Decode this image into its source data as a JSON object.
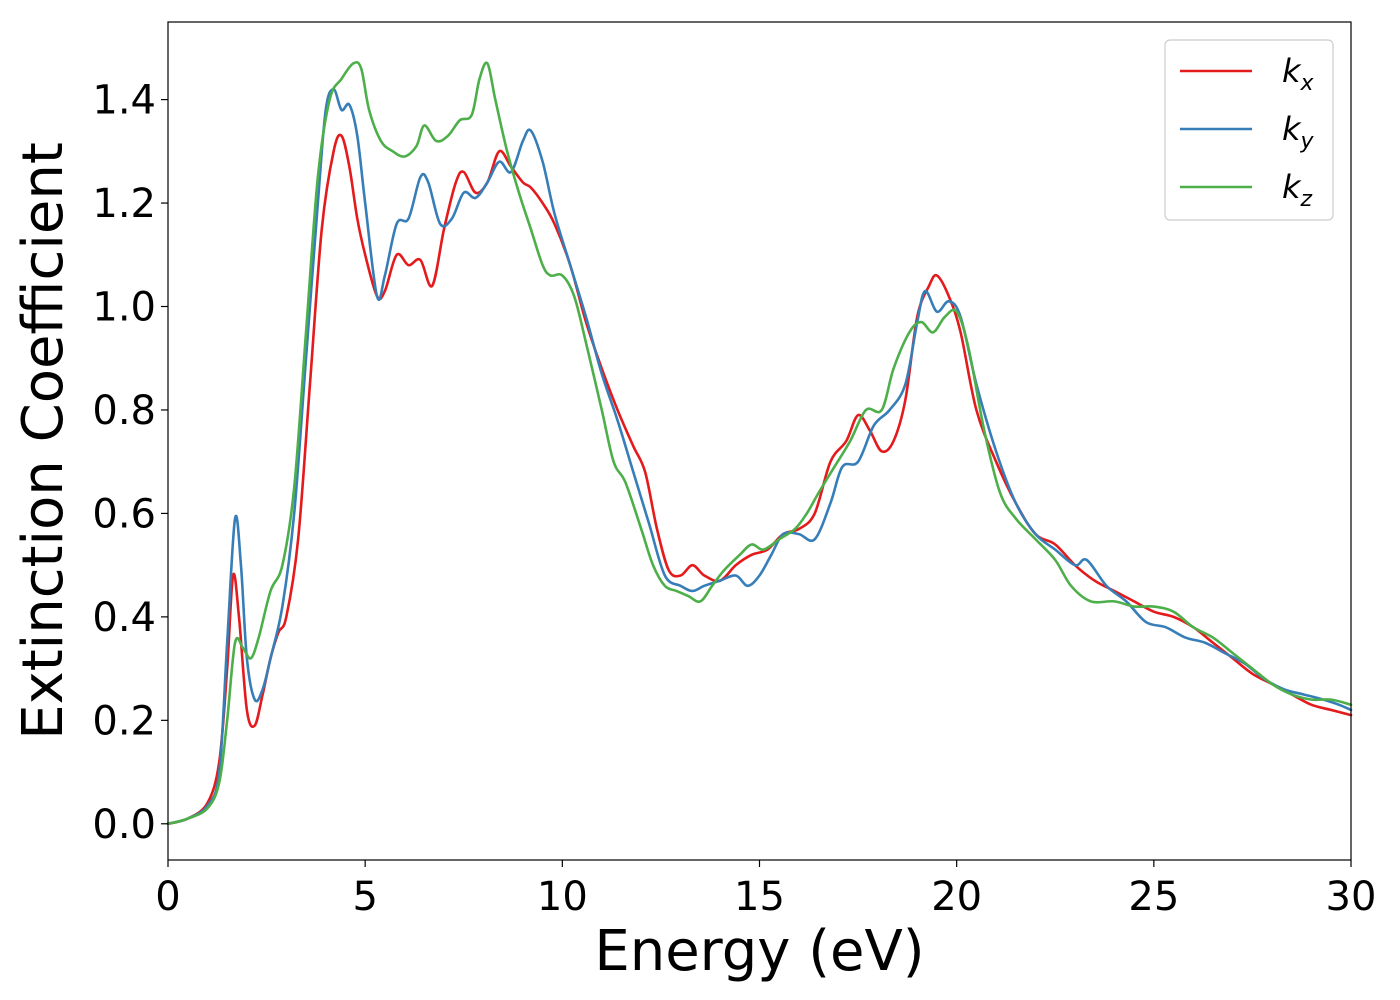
{
  "chart_data": {
    "type": "line",
    "title": "",
    "xlabel": "Energy (eV)",
    "ylabel": "Extinction Coefficient",
    "xlim": [
      0,
      30
    ],
    "ylim": [
      -0.07,
      1.55
    ],
    "xticks": [
      0,
      5,
      10,
      15,
      20,
      25,
      30
    ],
    "xtick_labels": [
      "0",
      "5",
      "10",
      "15",
      "20",
      "25",
      "30"
    ],
    "yticks": [
      0.0,
      0.2,
      0.4,
      0.6,
      0.8,
      1.0,
      1.2,
      1.4
    ],
    "ytick_labels": [
      "0.0",
      "0.2",
      "0.4",
      "0.6",
      "0.8",
      "1.0",
      "1.2",
      "1.4"
    ],
    "grid": false,
    "legend_position": "top-right",
    "series": [
      {
        "name": "k",
        "subscript": "x",
        "color": "#e41a1c",
        "points": [
          [
            0,
            0.0
          ],
          [
            0.5,
            0.01
          ],
          [
            1.0,
            0.04
          ],
          [
            1.3,
            0.12
          ],
          [
            1.5,
            0.3
          ],
          [
            1.65,
            0.48
          ],
          [
            1.8,
            0.4
          ],
          [
            2.0,
            0.22
          ],
          [
            2.2,
            0.19
          ],
          [
            2.4,
            0.25
          ],
          [
            2.6,
            0.32
          ],
          [
            2.8,
            0.37
          ],
          [
            3.0,
            0.4
          ],
          [
            3.3,
            0.55
          ],
          [
            3.6,
            0.85
          ],
          [
            3.9,
            1.15
          ],
          [
            4.2,
            1.3
          ],
          [
            4.4,
            1.33
          ],
          [
            4.6,
            1.27
          ],
          [
            4.8,
            1.17
          ],
          [
            5.0,
            1.1
          ],
          [
            5.3,
            1.02
          ],
          [
            5.5,
            1.03
          ],
          [
            5.8,
            1.1
          ],
          [
            6.1,
            1.08
          ],
          [
            6.4,
            1.09
          ],
          [
            6.7,
            1.04
          ],
          [
            7.0,
            1.15
          ],
          [
            7.3,
            1.24
          ],
          [
            7.5,
            1.26
          ],
          [
            7.8,
            1.22
          ],
          [
            8.1,
            1.24
          ],
          [
            8.4,
            1.3
          ],
          [
            8.7,
            1.27
          ],
          [
            9.0,
            1.24
          ],
          [
            9.2,
            1.23
          ],
          [
            9.5,
            1.2
          ],
          [
            9.8,
            1.16
          ],
          [
            10.2,
            1.08
          ],
          [
            10.6,
            0.97
          ],
          [
            11.0,
            0.88
          ],
          [
            11.4,
            0.8
          ],
          [
            11.8,
            0.73
          ],
          [
            12.1,
            0.68
          ],
          [
            12.4,
            0.57
          ],
          [
            12.7,
            0.49
          ],
          [
            13.0,
            0.48
          ],
          [
            13.3,
            0.5
          ],
          [
            13.6,
            0.48
          ],
          [
            14.0,
            0.47
          ],
          [
            14.4,
            0.5
          ],
          [
            14.8,
            0.52
          ],
          [
            15.2,
            0.53
          ],
          [
            15.6,
            0.56
          ],
          [
            16.0,
            0.57
          ],
          [
            16.4,
            0.6
          ],
          [
            16.8,
            0.7
          ],
          [
            17.2,
            0.74
          ],
          [
            17.5,
            0.79
          ],
          [
            17.8,
            0.76
          ],
          [
            18.1,
            0.72
          ],
          [
            18.4,
            0.74
          ],
          [
            18.7,
            0.82
          ],
          [
            19.0,
            0.98
          ],
          [
            19.3,
            1.04
          ],
          [
            19.5,
            1.06
          ],
          [
            19.8,
            1.02
          ],
          [
            20.1,
            0.95
          ],
          [
            20.5,
            0.8
          ],
          [
            21.0,
            0.7
          ],
          [
            21.5,
            0.62
          ],
          [
            22.0,
            0.56
          ],
          [
            22.5,
            0.54
          ],
          [
            23.0,
            0.5
          ],
          [
            23.5,
            0.47
          ],
          [
            24.0,
            0.45
          ],
          [
            24.5,
            0.43
          ],
          [
            25.0,
            0.41
          ],
          [
            25.5,
            0.4
          ],
          [
            26.0,
            0.38
          ],
          [
            26.5,
            0.35
          ],
          [
            27.0,
            0.32
          ],
          [
            27.5,
            0.29
          ],
          [
            28.0,
            0.27
          ],
          [
            28.5,
            0.25
          ],
          [
            29.0,
            0.23
          ],
          [
            29.5,
            0.22
          ],
          [
            30.0,
            0.21
          ]
        ]
      },
      {
        "name": "k",
        "subscript": "y",
        "color": "#377eb8",
        "points": [
          [
            0,
            0.0
          ],
          [
            0.5,
            0.01
          ],
          [
            1.0,
            0.035
          ],
          [
            1.3,
            0.1
          ],
          [
            1.5,
            0.35
          ],
          [
            1.7,
            0.59
          ],
          [
            1.85,
            0.5
          ],
          [
            2.0,
            0.32
          ],
          [
            2.2,
            0.24
          ],
          [
            2.4,
            0.26
          ],
          [
            2.6,
            0.32
          ],
          [
            2.9,
            0.42
          ],
          [
            3.2,
            0.6
          ],
          [
            3.5,
            0.9
          ],
          [
            3.8,
            1.2
          ],
          [
            4.0,
            1.38
          ],
          [
            4.2,
            1.42
          ],
          [
            4.4,
            1.38
          ],
          [
            4.6,
            1.39
          ],
          [
            4.8,
            1.33
          ],
          [
            5.0,
            1.2
          ],
          [
            5.3,
            1.02
          ],
          [
            5.5,
            1.06
          ],
          [
            5.8,
            1.16
          ],
          [
            6.1,
            1.17
          ],
          [
            6.4,
            1.25
          ],
          [
            6.6,
            1.24
          ],
          [
            6.9,
            1.16
          ],
          [
            7.2,
            1.17
          ],
          [
            7.5,
            1.22
          ],
          [
            7.8,
            1.21
          ],
          [
            8.1,
            1.24
          ],
          [
            8.4,
            1.28
          ],
          [
            8.7,
            1.26
          ],
          [
            9.0,
            1.32
          ],
          [
            9.2,
            1.34
          ],
          [
            9.5,
            1.28
          ],
          [
            9.8,
            1.18
          ],
          [
            10.2,
            1.08
          ],
          [
            10.6,
            0.98
          ],
          [
            11.0,
            0.87
          ],
          [
            11.4,
            0.78
          ],
          [
            11.8,
            0.68
          ],
          [
            12.2,
            0.58
          ],
          [
            12.6,
            0.48
          ],
          [
            13.0,
            0.46
          ],
          [
            13.3,
            0.45
          ],
          [
            13.6,
            0.46
          ],
          [
            14.0,
            0.47
          ],
          [
            14.4,
            0.48
          ],
          [
            14.7,
            0.46
          ],
          [
            15.0,
            0.48
          ],
          [
            15.3,
            0.52
          ],
          [
            15.6,
            0.56
          ],
          [
            16.0,
            0.56
          ],
          [
            16.4,
            0.55
          ],
          [
            16.8,
            0.62
          ],
          [
            17.1,
            0.69
          ],
          [
            17.5,
            0.7
          ],
          [
            17.9,
            0.77
          ],
          [
            18.3,
            0.8
          ],
          [
            18.7,
            0.85
          ],
          [
            19.0,
            0.97
          ],
          [
            19.2,
            1.03
          ],
          [
            19.5,
            0.99
          ],
          [
            19.8,
            1.01
          ],
          [
            20.1,
            0.98
          ],
          [
            20.5,
            0.85
          ],
          [
            21.0,
            0.72
          ],
          [
            21.5,
            0.62
          ],
          [
            22.0,
            0.56
          ],
          [
            22.5,
            0.53
          ],
          [
            23.0,
            0.5
          ],
          [
            23.3,
            0.51
          ],
          [
            23.8,
            0.46
          ],
          [
            24.3,
            0.43
          ],
          [
            24.8,
            0.39
          ],
          [
            25.3,
            0.38
          ],
          [
            25.8,
            0.36
          ],
          [
            26.3,
            0.35
          ],
          [
            26.8,
            0.33
          ],
          [
            27.3,
            0.31
          ],
          [
            27.8,
            0.28
          ],
          [
            28.3,
            0.26
          ],
          [
            28.8,
            0.25
          ],
          [
            29.3,
            0.24
          ],
          [
            29.7,
            0.23
          ],
          [
            30.0,
            0.22
          ]
        ]
      },
      {
        "name": "k",
        "subscript": "z",
        "color": "#4daf4a",
        "points": [
          [
            0,
            0.0
          ],
          [
            0.5,
            0.01
          ],
          [
            1.0,
            0.03
          ],
          [
            1.3,
            0.08
          ],
          [
            1.5,
            0.2
          ],
          [
            1.7,
            0.35
          ],
          [
            1.9,
            0.34
          ],
          [
            2.1,
            0.32
          ],
          [
            2.3,
            0.36
          ],
          [
            2.6,
            0.45
          ],
          [
            2.9,
            0.5
          ],
          [
            3.2,
            0.65
          ],
          [
            3.5,
            0.95
          ],
          [
            3.8,
            1.25
          ],
          [
            4.1,
            1.4
          ],
          [
            4.4,
            1.44
          ],
          [
            4.7,
            1.47
          ],
          [
            4.9,
            1.46
          ],
          [
            5.1,
            1.38
          ],
          [
            5.4,
            1.32
          ],
          [
            5.7,
            1.3
          ],
          [
            6.0,
            1.29
          ],
          [
            6.3,
            1.31
          ],
          [
            6.5,
            1.35
          ],
          [
            6.8,
            1.32
          ],
          [
            7.1,
            1.33
          ],
          [
            7.4,
            1.36
          ],
          [
            7.7,
            1.37
          ],
          [
            7.9,
            1.44
          ],
          [
            8.1,
            1.47
          ],
          [
            8.3,
            1.4
          ],
          [
            8.6,
            1.3
          ],
          [
            8.9,
            1.22
          ],
          [
            9.2,
            1.15
          ],
          [
            9.5,
            1.08
          ],
          [
            9.7,
            1.06
          ],
          [
            10.0,
            1.06
          ],
          [
            10.3,
            1.02
          ],
          [
            10.6,
            0.93
          ],
          [
            11.0,
            0.8
          ],
          [
            11.3,
            0.7
          ],
          [
            11.6,
            0.66
          ],
          [
            12.0,
            0.57
          ],
          [
            12.3,
            0.5
          ],
          [
            12.6,
            0.46
          ],
          [
            12.9,
            0.45
          ],
          [
            13.2,
            0.44
          ],
          [
            13.5,
            0.43
          ],
          [
            13.8,
            0.46
          ],
          [
            14.1,
            0.49
          ],
          [
            14.5,
            0.52
          ],
          [
            14.8,
            0.54
          ],
          [
            15.1,
            0.53
          ],
          [
            15.5,
            0.55
          ],
          [
            15.9,
            0.57
          ],
          [
            16.2,
            0.6
          ],
          [
            16.5,
            0.64
          ],
          [
            16.9,
            0.69
          ],
          [
            17.3,
            0.74
          ],
          [
            17.7,
            0.8
          ],
          [
            18.1,
            0.8
          ],
          [
            18.4,
            0.88
          ],
          [
            18.8,
            0.95
          ],
          [
            19.1,
            0.97
          ],
          [
            19.4,
            0.95
          ],
          [
            19.7,
            0.98
          ],
          [
            20.0,
            0.99
          ],
          [
            20.3,
            0.92
          ],
          [
            20.7,
            0.76
          ],
          [
            21.1,
            0.64
          ],
          [
            21.5,
            0.59
          ],
          [
            22.0,
            0.55
          ],
          [
            22.5,
            0.51
          ],
          [
            22.9,
            0.46
          ],
          [
            23.4,
            0.43
          ],
          [
            24.0,
            0.43
          ],
          [
            24.5,
            0.42
          ],
          [
            25.0,
            0.42
          ],
          [
            25.5,
            0.41
          ],
          [
            26.0,
            0.38
          ],
          [
            26.5,
            0.36
          ],
          [
            27.0,
            0.33
          ],
          [
            27.5,
            0.3
          ],
          [
            28.0,
            0.27
          ],
          [
            28.5,
            0.25
          ],
          [
            29.0,
            0.24
          ],
          [
            29.5,
            0.24
          ],
          [
            30.0,
            0.23
          ]
        ]
      }
    ]
  }
}
